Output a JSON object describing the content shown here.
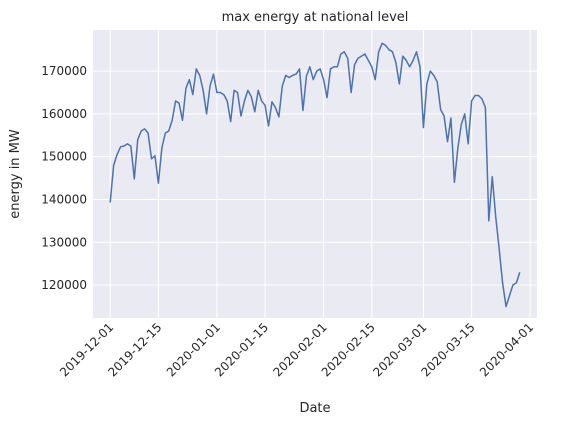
{
  "chart_data": {
    "type": "line",
    "title": "max energy at national level",
    "x_label": "Date",
    "y_label": "energy in MW",
    "x": [
      "2019-12-01",
      "2019-12-02",
      "2019-12-03",
      "2019-12-04",
      "2019-12-05",
      "2019-12-06",
      "2019-12-07",
      "2019-12-08",
      "2019-12-09",
      "2019-12-10",
      "2019-12-11",
      "2019-12-12",
      "2019-12-13",
      "2019-12-14",
      "2019-12-15",
      "2019-12-16",
      "2019-12-17",
      "2019-12-18",
      "2019-12-19",
      "2019-12-20",
      "2019-12-21",
      "2019-12-22",
      "2019-12-23",
      "2019-12-24",
      "2019-12-25",
      "2019-12-26",
      "2019-12-27",
      "2019-12-28",
      "2019-12-29",
      "2019-12-30",
      "2019-12-31",
      "2020-01-01",
      "2020-01-02",
      "2020-01-03",
      "2020-01-04",
      "2020-01-05",
      "2020-01-06",
      "2020-01-07",
      "2020-01-08",
      "2020-01-09",
      "2020-01-10",
      "2020-01-11",
      "2020-01-12",
      "2020-01-13",
      "2020-01-14",
      "2020-01-15",
      "2020-01-16",
      "2020-01-17",
      "2020-01-18",
      "2020-01-19",
      "2020-01-20",
      "2020-01-21",
      "2020-01-22",
      "2020-01-23",
      "2020-01-24",
      "2020-01-25",
      "2020-01-26",
      "2020-01-27",
      "2020-01-28",
      "2020-01-29",
      "2020-01-30",
      "2020-01-31",
      "2020-02-01",
      "2020-02-02",
      "2020-02-03",
      "2020-02-04",
      "2020-02-05",
      "2020-02-06",
      "2020-02-07",
      "2020-02-08",
      "2020-02-09",
      "2020-02-10",
      "2020-02-11",
      "2020-02-12",
      "2020-02-13",
      "2020-02-14",
      "2020-02-15",
      "2020-02-16",
      "2020-02-17",
      "2020-02-18",
      "2020-02-19",
      "2020-02-20",
      "2020-02-21",
      "2020-02-22",
      "2020-02-23",
      "2020-02-24",
      "2020-02-25",
      "2020-02-26",
      "2020-02-27",
      "2020-02-28",
      "2020-02-29",
      "2020-03-01",
      "2020-03-02",
      "2020-03-03",
      "2020-03-04",
      "2020-03-05",
      "2020-03-06",
      "2020-03-07",
      "2020-03-08",
      "2020-03-09",
      "2020-03-10",
      "2020-03-11",
      "2020-03-12",
      "2020-03-13",
      "2020-03-14",
      "2020-03-15",
      "2020-03-16",
      "2020-03-17",
      "2020-03-18",
      "2020-03-19",
      "2020-03-20",
      "2020-03-21",
      "2020-03-22",
      "2020-03-23",
      "2020-03-24",
      "2020-03-25",
      "2020-03-26",
      "2020-03-27",
      "2020-03-28",
      "2020-03-29"
    ],
    "series": [
      {
        "name": "max energy",
        "color": "#4c72b0",
        "values": [
          139300,
          148000,
          150500,
          152300,
          152500,
          153000,
          152500,
          144800,
          154000,
          156000,
          156500,
          155500,
          149500,
          150200,
          143800,
          152000,
          155500,
          156000,
          158500,
          163000,
          162500,
          158500,
          166000,
          168000,
          164500,
          170500,
          169000,
          165500,
          160000,
          166500,
          169300,
          165000,
          165000,
          164500,
          163000,
          158200,
          165500,
          165000,
          159500,
          163000,
          165500,
          164000,
          160500,
          165500,
          163000,
          162000,
          157200,
          162800,
          161500,
          159300,
          166500,
          169000,
          168500,
          169000,
          169300,
          170500,
          160800,
          168800,
          171000,
          168000,
          170000,
          170500,
          168000,
          163800,
          170500,
          171000,
          171000,
          174000,
          174500,
          173000,
          165000,
          171500,
          173000,
          173500,
          174000,
          172500,
          171000,
          168000,
          174500,
          176500,
          176000,
          175000,
          174500,
          172000,
          167000,
          173500,
          172500,
          171000,
          172500,
          174500,
          171000,
          156800,
          167000,
          170000,
          169000,
          167500,
          161000,
          159500,
          153500,
          159000,
          144000,
          152000,
          157500,
          160000,
          153000,
          163000,
          164300,
          164300,
          163500,
          161500,
          135000,
          145300,
          136000,
          128500,
          120500,
          115000,
          117500,
          120000,
          120500,
          123000
        ]
      }
    ],
    "xlim": [
      "2019-11-26",
      "2020-04-03"
    ],
    "xticks": [
      "2019-12-01",
      "2019-12-15",
      "2020-01-01",
      "2020-01-15",
      "2020-02-01",
      "2020-02-15",
      "2020-03-01",
      "2020-03-15",
      "2020-04-01"
    ],
    "ylim": [
      112300,
      179600
    ],
    "yticks": [
      120000,
      130000,
      140000,
      150000,
      160000,
      170000
    ],
    "grid": true
  }
}
